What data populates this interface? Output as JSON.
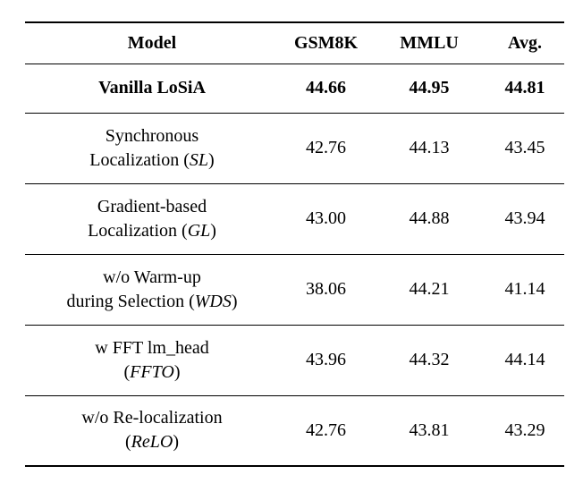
{
  "colors": {
    "background": "#ffffff",
    "text": "#000000",
    "rule": "#000000"
  },
  "table": {
    "columns": [
      "Model",
      "GSM8K",
      "MMLU",
      "Avg."
    ],
    "rows": [
      {
        "bold": true,
        "model": [
          [
            {
              "t": "Vanilla LoSiA"
            }
          ]
        ],
        "values": [
          "44.66",
          "44.95",
          "44.81"
        ]
      },
      {
        "bold": false,
        "model": [
          [
            {
              "t": "Synchronous"
            }
          ],
          [
            {
              "t": "Localization ("
            },
            {
              "t": "SL",
              "i": true
            },
            {
              "t": ")"
            }
          ]
        ],
        "values": [
          "42.76",
          "44.13",
          "43.45"
        ]
      },
      {
        "bold": false,
        "model": [
          [
            {
              "t": "Gradient-based"
            }
          ],
          [
            {
              "t": "Localization ("
            },
            {
              "t": "GL",
              "i": true
            },
            {
              "t": ")"
            }
          ]
        ],
        "values": [
          "43.00",
          "44.88",
          "43.94"
        ]
      },
      {
        "bold": false,
        "model": [
          [
            {
              "t": "w/o Warm-up"
            }
          ],
          [
            {
              "t": "during Selection ("
            },
            {
              "t": "WDS",
              "i": true
            },
            {
              "t": ")"
            }
          ]
        ],
        "values": [
          "38.06",
          "44.21",
          "41.14"
        ]
      },
      {
        "bold": false,
        "model": [
          [
            {
              "t": "w FFT lm_head"
            }
          ],
          [
            {
              "t": "("
            },
            {
              "t": "FFTO",
              "i": true
            },
            {
              "t": ")"
            }
          ]
        ],
        "values": [
          "43.96",
          "44.32",
          "44.14"
        ]
      },
      {
        "bold": false,
        "model": [
          [
            {
              "t": "w/o Re-localization"
            }
          ],
          [
            {
              "t": "("
            },
            {
              "t": "ReLO",
              "i": true
            },
            {
              "t": ")"
            }
          ]
        ],
        "values": [
          "42.76",
          "43.81",
          "43.29"
        ]
      }
    ]
  }
}
